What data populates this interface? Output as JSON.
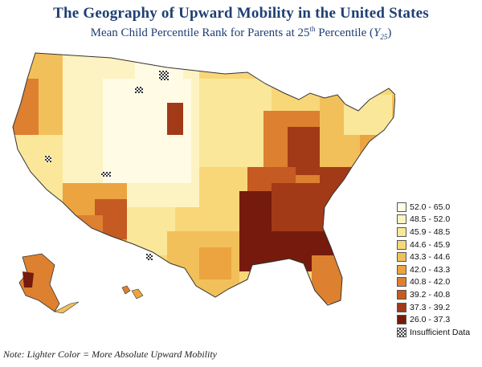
{
  "title": "The Geography of Upward Mobility in the United States",
  "subtitle": {
    "prefix": "Mean Child Percentile Rank for Parents at 25",
    "sup": "th",
    "middle": " Percentile (",
    "var": "Y",
    "sub": "25",
    "suffix": ")"
  },
  "legend": [
    {
      "label": "52.0 - 65.0",
      "color": "#fffbe4"
    },
    {
      "label": "48.5 - 52.0",
      "color": "#fdf3c2"
    },
    {
      "label": "45.9 - 48.5",
      "color": "#fbe79a"
    },
    {
      "label": "44.6 - 45.9",
      "color": "#f8d779"
    },
    {
      "label": "43.3 - 44.6",
      "color": "#f2c05a"
    },
    {
      "label": "42.0 - 43.3",
      "color": "#eba440"
    },
    {
      "label": "40.8 - 42.0",
      "color": "#dd8030"
    },
    {
      "label": "39.2 - 40.8",
      "color": "#c55a22"
    },
    {
      "label": "37.3 - 39.2",
      "color": "#a23a17"
    },
    {
      "label": "26.0 - 37.3",
      "color": "#751a0d"
    },
    {
      "label": "Insufficient Data",
      "color": "checker"
    }
  ],
  "note": "Note: Lighter Color = More Absolute Upward Mobility"
}
